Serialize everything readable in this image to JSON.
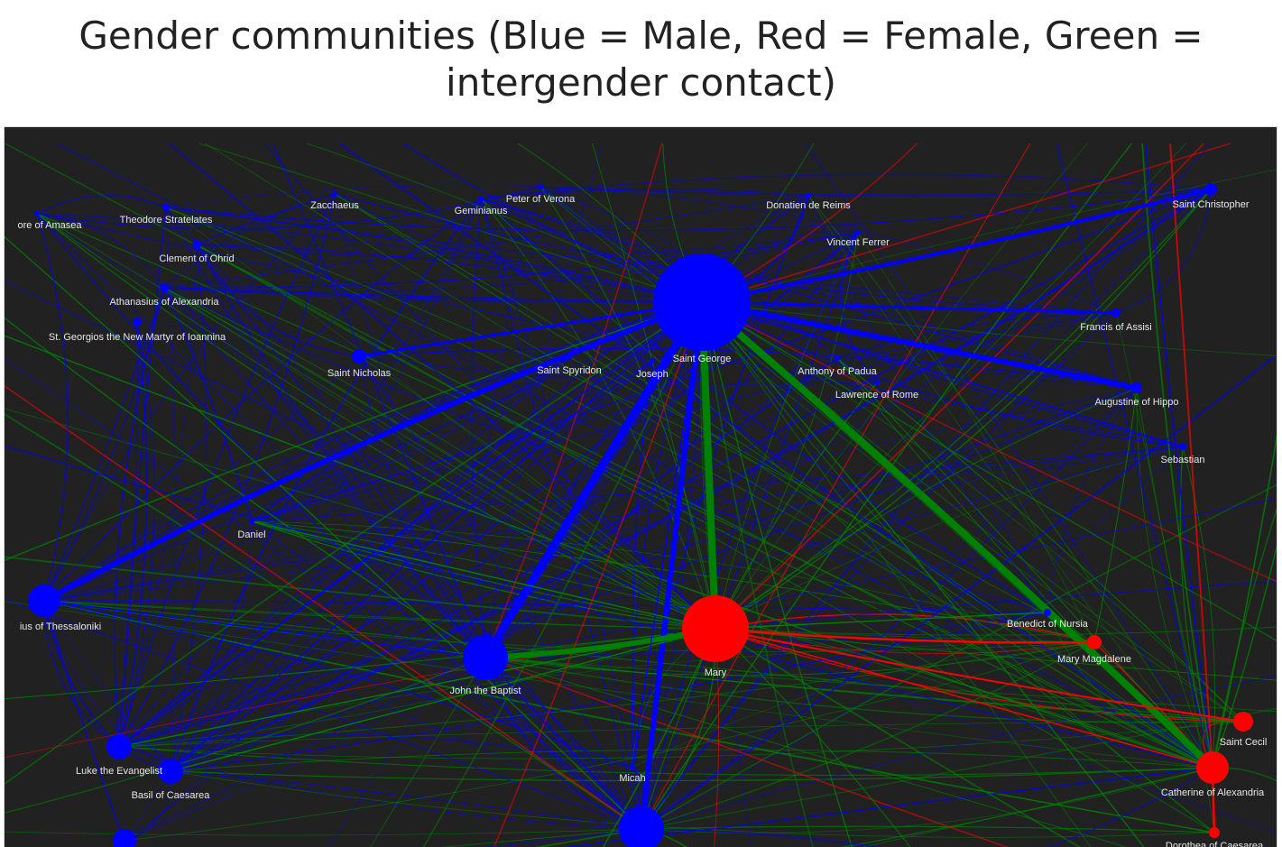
{
  "title": "Gender communities (Blue = Male, Red = Female, Green = intergender contact)",
  "colors": {
    "male": "#0000ff",
    "female": "#ff0000",
    "intergender": "#008000",
    "background": "#212121",
    "label": "#e8e8e8"
  },
  "nodes": [
    {
      "id": "george",
      "label": "Saint George",
      "gender": "male"
    },
    {
      "id": "mary",
      "label": "Mary",
      "gender": "female"
    },
    {
      "id": "john",
      "label": "John the Baptist",
      "gender": "male"
    },
    {
      "id": "demetrius",
      "label": "ius of Thessaloniki",
      "gender": "male"
    },
    {
      "id": "christopher",
      "label": "Saint Christopher",
      "gender": "male"
    },
    {
      "id": "francis",
      "label": "Francis of Assisi",
      "gender": "male"
    },
    {
      "id": "augustine",
      "label": "Augustine of Hippo",
      "gender": "male"
    },
    {
      "id": "sebastian",
      "label": "Sebastian",
      "gender": "male"
    },
    {
      "id": "nicholas",
      "label": "Saint Nicholas",
      "gender": "male"
    },
    {
      "id": "spyridon",
      "label": "Saint Spyridon",
      "gender": "male"
    },
    {
      "id": "joseph",
      "label": "Joseph",
      "gender": "male"
    },
    {
      "id": "anthony",
      "label": "Anthony of Padua",
      "gender": "male"
    },
    {
      "id": "lawrence",
      "label": "Lawrence of Rome",
      "gender": "male"
    },
    {
      "id": "vincent",
      "label": "Vincent Ferrer",
      "gender": "male"
    },
    {
      "id": "donatien",
      "label": "Donatien de Reims",
      "gender": "male"
    },
    {
      "id": "peter",
      "label": "Peter of Verona",
      "gender": "male"
    },
    {
      "id": "geminianus",
      "label": "Geminianus",
      "gender": "male"
    },
    {
      "id": "zacchaeus",
      "label": "Zacchaeus",
      "gender": "male"
    },
    {
      "id": "theodore",
      "label": "Theodore Stratelates",
      "gender": "male"
    },
    {
      "id": "amasea",
      "label": "ore of Amasea",
      "gender": "male"
    },
    {
      "id": "clement",
      "label": "Clement of Ohrid",
      "gender": "male"
    },
    {
      "id": "athanasius",
      "label": "Athanasius of Alexandria",
      "gender": "male"
    },
    {
      "id": "georgios",
      "label": "St.  Georgios the New Martyr of Ioannina",
      "gender": "male"
    },
    {
      "id": "daniel",
      "label": "Daniel",
      "gender": "male"
    },
    {
      "id": "luke",
      "label": "Luke the Evangelist",
      "gender": "male"
    },
    {
      "id": "basil",
      "label": "Basil of Caesarea",
      "gender": "male"
    },
    {
      "id": "micah",
      "label": "Micah",
      "gender": "male"
    },
    {
      "id": "bottomblue",
      "label": "",
      "gender": "male"
    },
    {
      "id": "bottomleft",
      "label": "",
      "gender": "male"
    },
    {
      "id": "benedict",
      "label": "Benedict of Nursia",
      "gender": "male"
    },
    {
      "id": "magdalene",
      "label": "Mary Magdalene",
      "gender": "female"
    },
    {
      "id": "cecilia",
      "label": "Saint Cecil",
      "gender": "female"
    },
    {
      "id": "catherine",
      "label": "Catherine of Alexandria",
      "gender": "female"
    },
    {
      "id": "dorothea",
      "label": "Dorothea of Caesarea",
      "gender": "female"
    }
  ],
  "edges": [
    {
      "source": "george",
      "target": "demetrius",
      "kind": "male"
    },
    {
      "source": "george",
      "target": "john",
      "kind": "male"
    },
    {
      "source": "george",
      "target": "christopher",
      "kind": "male"
    },
    {
      "source": "george",
      "target": "augustine",
      "kind": "male"
    },
    {
      "source": "george",
      "target": "bottomblue",
      "kind": "male"
    },
    {
      "source": "george",
      "target": "nicholas",
      "kind": "male"
    },
    {
      "source": "george",
      "target": "francis",
      "kind": "male"
    },
    {
      "source": "george",
      "target": "mary",
      "kind": "intergender"
    },
    {
      "source": "george",
      "target": "catherine",
      "kind": "intergender"
    },
    {
      "source": "john",
      "target": "mary",
      "kind": "intergender"
    },
    {
      "source": "mary",
      "target": "magdalene",
      "kind": "female"
    },
    {
      "source": "mary",
      "target": "cecilia",
      "kind": "female"
    },
    {
      "source": "catherine",
      "target": "dorothea",
      "kind": "female"
    },
    {
      "source": "demetrius",
      "target": "john",
      "kind": "male"
    },
    {
      "source": "luke",
      "target": "george",
      "kind": "male"
    },
    {
      "source": "basil",
      "target": "george",
      "kind": "male"
    },
    {
      "source": "basil",
      "target": "mary",
      "kind": "intergender"
    },
    {
      "source": "luke",
      "target": "mary",
      "kind": "intergender"
    },
    {
      "source": "micah",
      "target": "george",
      "kind": "male"
    },
    {
      "source": "john",
      "target": "bottomblue",
      "kind": "male"
    },
    {
      "source": "mary",
      "target": "catherine",
      "kind": "female"
    },
    {
      "source": "benedict",
      "target": "mary",
      "kind": "intergender"
    },
    {
      "source": "sebastian",
      "target": "george",
      "kind": "male"
    },
    {
      "source": "daniel",
      "target": "mary",
      "kind": "intergender"
    }
  ]
}
